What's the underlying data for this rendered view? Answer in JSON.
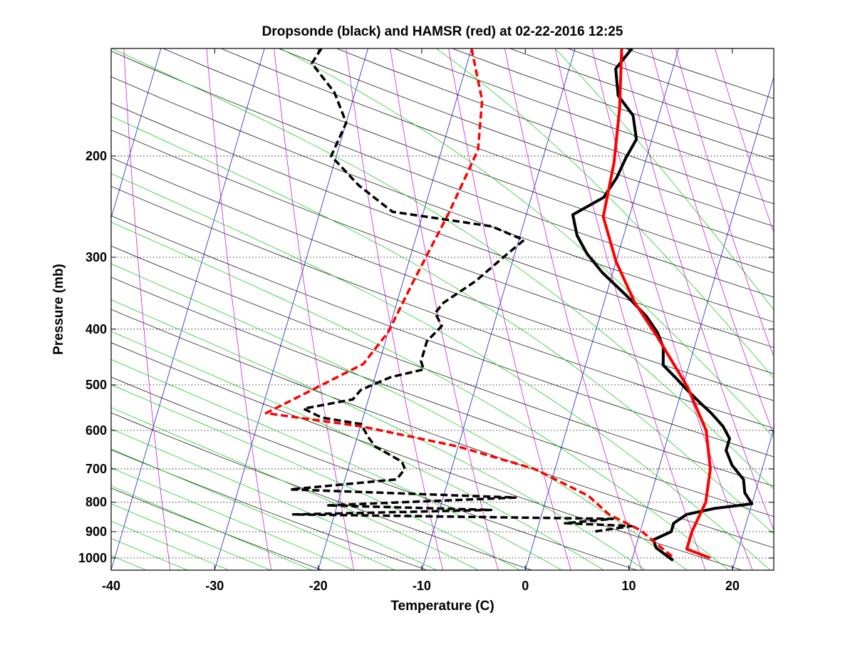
{
  "chart_data": {
    "type": "line",
    "title": "Dropsonde (black) and HAMSR (red) at 02-22-2016 12:25",
    "xlabel": "Temperature (C)",
    "ylabel": "Pressure (mb)",
    "x_scale": "linear",
    "y_scale": "log",
    "y_reversed": true,
    "xlim": [
      -40,
      24
    ],
    "ylim": [
      1050,
      130
    ],
    "xticks": [
      -40,
      -30,
      -20,
      -10,
      0,
      10,
      20
    ],
    "xtick_labels": [
      "-40",
      "-30",
      "-20",
      "-10",
      "0",
      "10",
      "20"
    ],
    "yticks": [
      200,
      300,
      400,
      500,
      600,
      700,
      800,
      900,
      1000
    ],
    "ytick_labels": [
      "200",
      "300",
      "400",
      "500",
      "600",
      "700",
      "800",
      "900",
      "1000"
    ],
    "grid": "horizontal dotted at pressure ticks",
    "background_lines": {
      "dry_adiabats_color": "#000000",
      "isotherms_color": "#0000c8",
      "moist_adiabats_color": "#00cc00",
      "mixing_ratio_color": "#cc00cc"
    },
    "series": [
      {
        "name": "Dropsonde",
        "kind": "temperature",
        "color": "#000000",
        "style": "solid",
        "points": [
          [
            -4.5,
            130
          ],
          [
            -5.5,
            141
          ],
          [
            -4.5,
            157
          ],
          [
            -2.5,
            170
          ],
          [
            -1.5,
            187
          ],
          [
            -2,
            202
          ],
          [
            -2.3,
            218
          ],
          [
            -3,
            236
          ],
          [
            -5.5,
            253
          ],
          [
            -4.5,
            275
          ],
          [
            -3,
            296
          ],
          [
            -1,
            319
          ],
          [
            2,
            350
          ],
          [
            4.5,
            380
          ],
          [
            6,
            405
          ],
          [
            7,
            430
          ],
          [
            7.5,
            462
          ],
          [
            9,
            485
          ],
          [
            10.5,
            510
          ],
          [
            12,
            535
          ],
          [
            13.5,
            560
          ],
          [
            15,
            590
          ],
          [
            16,
            620
          ],
          [
            16,
            650
          ],
          [
            17,
            690
          ],
          [
            18.5,
            730
          ],
          [
            19,
            770
          ],
          [
            20,
            805
          ],
          [
            16.5,
            820
          ],
          [
            14,
            840
          ],
          [
            13,
            870
          ],
          [
            13,
            900
          ],
          [
            11.5,
            930
          ],
          [
            12,
            960
          ],
          [
            14,
            1010
          ]
        ]
      },
      {
        "name": "Dropsonde",
        "kind": "dewpoint",
        "color": "#000000",
        "style": "dashed",
        "points": [
          [
            -34.5,
            130
          ],
          [
            -35,
            138
          ],
          [
            -32,
            155
          ],
          [
            -30,
            175
          ],
          [
            -30.5,
            200
          ],
          [
            -27,
            225
          ],
          [
            -23,
            250
          ],
          [
            -13,
            265
          ],
          [
            -9.5,
            280
          ],
          [
            -11,
            300
          ],
          [
            -13,
            330
          ],
          [
            -15.5,
            360
          ],
          [
            -16,
            375
          ],
          [
            -15,
            395
          ],
          [
            -16,
            420
          ],
          [
            -16,
            455
          ],
          [
            -15.5,
            470
          ],
          [
            -18.5,
            485
          ],
          [
            -21,
            510
          ],
          [
            -21.5,
            530
          ],
          [
            -26,
            550
          ],
          [
            -24,
            570
          ],
          [
            -20,
            585
          ],
          [
            -19,
            615
          ],
          [
            -18,
            640
          ],
          [
            -15,
            680
          ],
          [
            -14.5,
            700
          ],
          [
            -15,
            730
          ],
          [
            -25,
            760
          ],
          [
            -3,
            785
          ],
          [
            -21,
            810
          ],
          [
            -5,
            825
          ],
          [
            -24,
            840
          ],
          [
            7,
            855
          ],
          [
            2.5,
            870
          ],
          [
            9,
            880
          ],
          [
            5.5,
            900
          ]
        ]
      },
      {
        "name": "HAMSR",
        "kind": "temperature",
        "color": "#ff0000",
        "style": "solid",
        "points": [
          [
            -5.5,
            130
          ],
          [
            -4,
            165
          ],
          [
            -3,
            205
          ],
          [
            -2.5,
            255
          ],
          [
            0,
            305
          ],
          [
            3,
            360
          ],
          [
            6,
            410
          ],
          [
            10.5,
            505
          ],
          [
            13.5,
            600
          ],
          [
            15,
            700
          ],
          [
            15.5,
            800
          ],
          [
            15,
            900
          ],
          [
            15,
            965
          ],
          [
            17.5,
            1000
          ]
        ]
      },
      {
        "name": "HAMSR",
        "kind": "dewpoint",
        "color": "#ff0000",
        "style": "dashed",
        "points": [
          [
            -20,
            130
          ],
          [
            -17.5,
            160
          ],
          [
            -16.5,
            195
          ],
          [
            -17.5,
            250
          ],
          [
            -19,
            330
          ],
          [
            -20,
            405
          ],
          [
            -21.5,
            460
          ],
          [
            -29.5,
            560
          ],
          [
            -20,
            590
          ],
          [
            -10,
            640
          ],
          [
            -2,
            700
          ],
          [
            4,
            780
          ],
          [
            6.5,
            840
          ],
          [
            10,
            895
          ],
          [
            14,
            1000
          ]
        ]
      }
    ]
  }
}
